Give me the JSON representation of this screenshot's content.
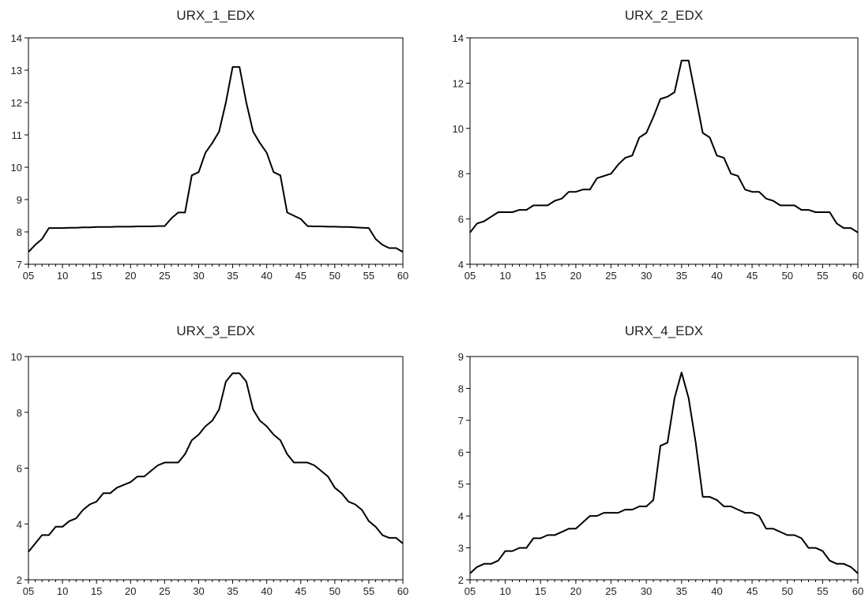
{
  "chart_data": [
    {
      "type": "line",
      "title": "URX_1_EDX",
      "xlabel": "",
      "ylabel": "",
      "xlim": [
        5,
        60
      ],
      "ylim": [
        7,
        14
      ],
      "x_ticks": [
        5,
        10,
        15,
        20,
        25,
        30,
        35,
        40,
        45,
        50,
        55,
        60
      ],
      "x_tick_labels": [
        "05",
        "10",
        "15",
        "20",
        "25",
        "30",
        "35",
        "40",
        "45",
        "50",
        "55",
        "60"
      ],
      "y_ticks": [
        7,
        8,
        9,
        10,
        11,
        12,
        13,
        14
      ],
      "y_tick_labels": [
        "7",
        "8",
        "9",
        "10",
        "11",
        "12",
        "13",
        "14"
      ],
      "x": [
        5,
        6,
        7,
        8,
        9,
        10,
        11,
        12,
        13,
        14,
        15,
        16,
        17,
        18,
        19,
        20,
        21,
        22,
        23,
        24,
        25,
        26,
        27,
        28,
        29,
        30,
        31,
        32,
        33,
        34,
        35,
        36,
        37,
        38,
        39,
        40,
        41,
        42,
        43,
        44,
        45,
        46,
        47,
        48,
        49,
        50,
        51,
        52,
        53,
        54,
        55,
        56,
        57,
        58,
        59,
        60
      ],
      "values": [
        7.38,
        7.6,
        7.78,
        8.12,
        8.12,
        8.12,
        8.13,
        8.13,
        8.14,
        8.14,
        8.15,
        8.15,
        8.15,
        8.16,
        8.16,
        8.16,
        8.17,
        8.17,
        8.17,
        8.18,
        8.18,
        8.42,
        8.6,
        8.6,
        9.75,
        9.85,
        10.45,
        10.75,
        11.1,
        12.0,
        13.1,
        13.1,
        12.0,
        11.1,
        10.75,
        10.45,
        9.85,
        9.75,
        8.6,
        8.5,
        8.4,
        8.18,
        8.17,
        8.17,
        8.16,
        8.16,
        8.15,
        8.15,
        8.14,
        8.13,
        8.12,
        7.78,
        7.6,
        7.5,
        7.5,
        7.38
      ]
    },
    {
      "type": "line",
      "title": "URX_2_EDX",
      "xlabel": "",
      "ylabel": "",
      "xlim": [
        5,
        60
      ],
      "ylim": [
        4,
        14
      ],
      "x_ticks": [
        5,
        10,
        15,
        20,
        25,
        30,
        35,
        40,
        45,
        50,
        55,
        60
      ],
      "x_tick_labels": [
        "05",
        "10",
        "15",
        "20",
        "25",
        "30",
        "35",
        "40",
        "45",
        "50",
        "55",
        "60"
      ],
      "y_ticks": [
        4,
        6,
        8,
        10,
        12,
        14
      ],
      "y_tick_labels": [
        "4",
        "6",
        "8",
        "10",
        "12",
        "14"
      ],
      "x": [
        5,
        6,
        7,
        8,
        9,
        10,
        11,
        12,
        13,
        14,
        15,
        16,
        17,
        18,
        19,
        20,
        21,
        22,
        23,
        24,
        25,
        26,
        27,
        28,
        29,
        30,
        31,
        32,
        33,
        34,
        35,
        36,
        37,
        38,
        39,
        40,
        41,
        42,
        43,
        44,
        45,
        46,
        47,
        48,
        49,
        50,
        51,
        52,
        53,
        54,
        55,
        56,
        57,
        58,
        59,
        60
      ],
      "values": [
        5.4,
        5.8,
        5.9,
        6.1,
        6.3,
        6.3,
        6.3,
        6.4,
        6.4,
        6.6,
        6.6,
        6.6,
        6.8,
        6.9,
        7.2,
        7.2,
        7.3,
        7.3,
        7.8,
        7.9,
        8.0,
        8.4,
        8.7,
        8.8,
        9.6,
        9.8,
        10.5,
        11.3,
        11.4,
        11.6,
        13.0,
        13.0,
        11.4,
        9.8,
        9.6,
        8.8,
        8.7,
        8.0,
        7.9,
        7.3,
        7.2,
        7.2,
        6.9,
        6.8,
        6.6,
        6.6,
        6.6,
        6.4,
        6.4,
        6.3,
        6.3,
        6.3,
        5.8,
        5.6,
        5.6,
        5.4
      ]
    },
    {
      "type": "line",
      "title": "URX_3_EDX",
      "xlabel": "",
      "ylabel": "",
      "xlim": [
        5,
        60
      ],
      "ylim": [
        2,
        10
      ],
      "x_ticks": [
        5,
        10,
        15,
        20,
        25,
        30,
        35,
        40,
        45,
        50,
        55,
        60
      ],
      "x_tick_labels": [
        "05",
        "10",
        "15",
        "20",
        "25",
        "30",
        "35",
        "40",
        "45",
        "50",
        "55",
        "60"
      ],
      "y_ticks": [
        2,
        4,
        6,
        8,
        10
      ],
      "y_tick_labels": [
        "2",
        "4",
        "6",
        "8",
        "10"
      ],
      "x": [
        5,
        6,
        7,
        8,
        9,
        10,
        11,
        12,
        13,
        14,
        15,
        16,
        17,
        18,
        19,
        20,
        21,
        22,
        23,
        24,
        25,
        26,
        27,
        28,
        29,
        30,
        31,
        32,
        33,
        34,
        35,
        36,
        37,
        38,
        39,
        40,
        41,
        42,
        43,
        44,
        45,
        46,
        47,
        48,
        49,
        50,
        51,
        52,
        53,
        54,
        55,
        56,
        57,
        58,
        59,
        60
      ],
      "values": [
        3.0,
        3.3,
        3.6,
        3.6,
        3.9,
        3.9,
        4.1,
        4.2,
        4.5,
        4.7,
        4.8,
        5.1,
        5.1,
        5.3,
        5.4,
        5.5,
        5.7,
        5.7,
        5.9,
        6.1,
        6.2,
        6.2,
        6.2,
        6.5,
        7.0,
        7.2,
        7.5,
        7.7,
        8.1,
        9.1,
        9.4,
        9.4,
        9.1,
        8.1,
        7.7,
        7.5,
        7.2,
        7.0,
        6.5,
        6.2,
        6.2,
        6.2,
        6.1,
        5.9,
        5.7,
        5.3,
        5.1,
        4.8,
        4.7,
        4.5,
        4.1,
        3.9,
        3.6,
        3.5,
        3.5,
        3.3
      ]
    },
    {
      "type": "line",
      "title": "URX_4_EDX",
      "xlabel": "",
      "ylabel": "",
      "xlim": [
        5,
        60
      ],
      "ylim": [
        2,
        9
      ],
      "x_ticks": [
        5,
        10,
        15,
        20,
        25,
        30,
        35,
        40,
        45,
        50,
        55,
        60
      ],
      "x_tick_labels": [
        "05",
        "10",
        "15",
        "20",
        "25",
        "30",
        "35",
        "40",
        "45",
        "50",
        "55",
        "60"
      ],
      "y_ticks": [
        2,
        3,
        4,
        5,
        6,
        7,
        8,
        9
      ],
      "y_tick_labels": [
        "2",
        "3",
        "4",
        "5",
        "6",
        "7",
        "8",
        "9"
      ],
      "x": [
        5,
        6,
        7,
        8,
        9,
        10,
        11,
        12,
        13,
        14,
        15,
        16,
        17,
        18,
        19,
        20,
        21,
        22,
        23,
        24,
        25,
        26,
        27,
        28,
        29,
        30,
        31,
        32,
        33,
        34,
        35,
        36,
        37,
        38,
        39,
        40,
        41,
        42,
        43,
        44,
        45,
        46,
        47,
        48,
        49,
        50,
        51,
        52,
        53,
        54,
        55,
        56,
        57,
        58,
        59,
        60
      ],
      "values": [
        2.2,
        2.4,
        2.5,
        2.5,
        2.6,
        2.9,
        2.9,
        3.0,
        3.0,
        3.3,
        3.3,
        3.4,
        3.4,
        3.5,
        3.6,
        3.6,
        3.8,
        4.0,
        4.0,
        4.1,
        4.1,
        4.1,
        4.2,
        4.2,
        4.3,
        4.3,
        4.5,
        6.2,
        6.3,
        7.7,
        8.5,
        7.7,
        6.3,
        4.6,
        4.6,
        4.5,
        4.3,
        4.3,
        4.2,
        4.1,
        4.1,
        4.0,
        3.6,
        3.6,
        3.5,
        3.4,
        3.4,
        3.3,
        3.0,
        3.0,
        2.9,
        2.6,
        2.5,
        2.5,
        2.4,
        2.2
      ]
    }
  ]
}
